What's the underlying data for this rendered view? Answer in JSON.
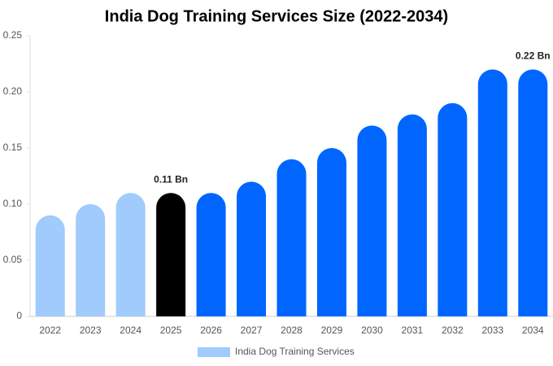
{
  "chart_data": {
    "type": "bar",
    "title": "India Dog Training Services Size (2022-2034)",
    "categories": [
      "2022",
      "2023",
      "2024",
      "2025",
      "2026",
      "2027",
      "2028",
      "2029",
      "2030",
      "2031",
      "2032",
      "2033",
      "2034"
    ],
    "series": [
      {
        "name": "India Dog Training Services",
        "color": "#a0cbfc",
        "colors": [
          "#a0cbfc",
          "#a0cbfc",
          "#a0cbfc",
          "#000000",
          "#0066ff",
          "#0066ff",
          "#0066ff",
          "#0066ff",
          "#0066ff",
          "#0066ff",
          "#0066ff",
          "#0066ff",
          "#0066ff"
        ],
        "values": [
          0.09,
          0.1,
          0.11,
          0.11,
          0.11,
          0.12,
          0.14,
          0.15,
          0.17,
          0.18,
          0.19,
          0.22,
          0.22
        ],
        "value_labels": [
          null,
          null,
          null,
          "0.11 Bn",
          null,
          null,
          null,
          null,
          null,
          null,
          null,
          null,
          "0.22 Bn"
        ]
      }
    ],
    "ylim": [
      0,
      0.25
    ],
    "yticks": [
      0,
      0.05,
      {
        "value": 0.1,
        "label": "0.10"
      },
      0.15,
      {
        "value": 0.2,
        "label": "0.20"
      },
      0.25
    ],
    "legend": "bottom"
  }
}
